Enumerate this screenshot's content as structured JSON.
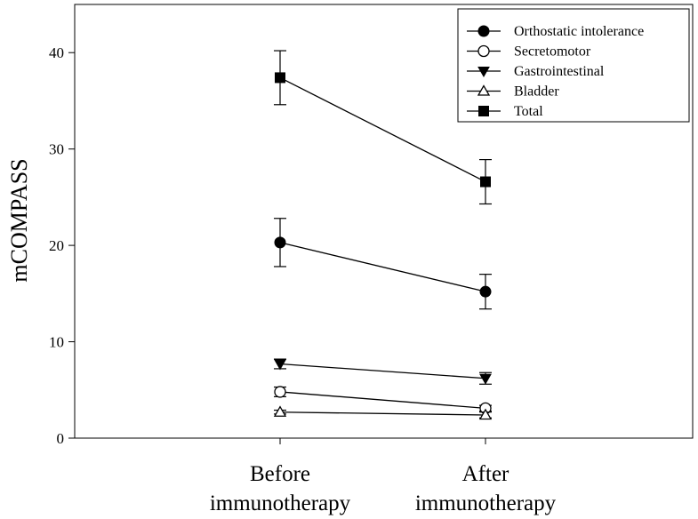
{
  "chart_data": {
    "type": "line",
    "categories": [
      "Before\nimmunotherapy",
      "After\nimmunotherapy"
    ],
    "ylabel": "mCOMPASS",
    "ylim": [
      0,
      45
    ],
    "yticks": [
      0,
      10,
      20,
      30,
      40
    ],
    "grid": false,
    "legend_position": "top-right",
    "series": [
      {
        "name": "Orthostatic intolerance",
        "marker": "circle-filled",
        "values": [
          20.3,
          15.2
        ],
        "error": [
          2.5,
          1.8
        ]
      },
      {
        "name": "Secretomotor",
        "marker": "circle-open",
        "values": [
          4.8,
          3.1
        ],
        "error": [
          0.5,
          0.3
        ]
      },
      {
        "name": "Gastrointestinal",
        "marker": "triangle-down-filled",
        "values": [
          7.7,
          6.2
        ],
        "error": [
          0.5,
          0.6
        ]
      },
      {
        "name": "Bladder",
        "marker": "triangle-up-open",
        "values": [
          2.7,
          2.4
        ],
        "error": [
          0.2,
          0.3
        ]
      },
      {
        "name": "Total",
        "marker": "square-filled",
        "values": [
          37.4,
          26.6
        ],
        "error": [
          2.8,
          2.3
        ]
      }
    ]
  }
}
